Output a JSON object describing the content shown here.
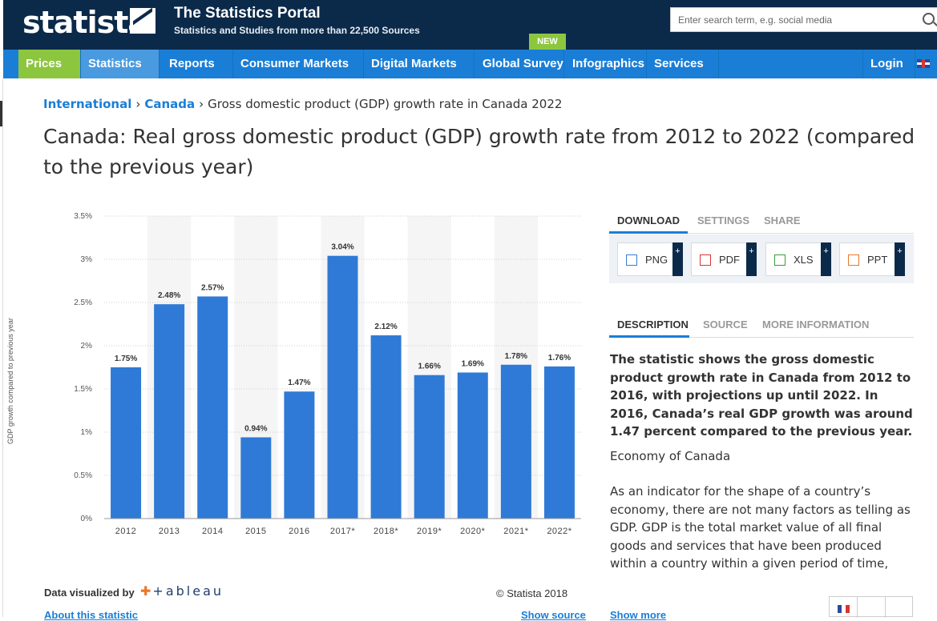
{
  "header": {
    "logo": "statista",
    "title": "The Statistics Portal",
    "subtitle": "Statistics and Studies from more than 22,500 Sources",
    "new_badge": "NEW",
    "search_placeholder": "Enter search term, e.g. social media"
  },
  "nav": {
    "items": [
      "Prices",
      "Statistics",
      "Reports",
      "Consumer Markets",
      "Digital Markets",
      "Global Survey",
      "Infographics",
      "Services"
    ],
    "login": "Login"
  },
  "breadcrumb": {
    "items": [
      "International",
      "Canada"
    ],
    "current": "Gross domestic product (GDP) growth rate in Canada 2022"
  },
  "page_title": "Canada: Real gross domestic product (GDP) growth rate from 2012 to 2022 (compared to the previous year)",
  "chart_data": {
    "type": "bar",
    "categories": [
      "2012",
      "2013",
      "2014",
      "2015",
      "2016",
      "2017*",
      "2018*",
      "2019*",
      "2020*",
      "2021*",
      "2022*"
    ],
    "values": [
      1.75,
      2.48,
      2.57,
      0.94,
      1.47,
      3.04,
      2.12,
      1.66,
      1.69,
      1.78,
      1.76
    ],
    "value_labels": [
      "1.75%",
      "2.48%",
      "2.57%",
      "0.94%",
      "1.47%",
      "3.04%",
      "2.12%",
      "1.66%",
      "1.69%",
      "1.78%",
      "1.76%"
    ],
    "yticks": [
      "0%",
      "0.5%",
      "1%",
      "1.5%",
      "2%",
      "2.5%",
      "3%",
      "3.5%"
    ],
    "ylim": [
      0,
      3.5
    ],
    "ylabel": "GDP growth compared to previous year",
    "xlabel": "",
    "title": "",
    "grid": true,
    "bar_color": "#2f7ad6"
  },
  "chart_footer": {
    "visualized_by": "Data visualized by",
    "tableau": "+ableau",
    "copyright": "© Statista 2018",
    "about": "About this statistic",
    "show_source": "Show source"
  },
  "side": {
    "tabs": [
      "DOWNLOAD",
      "SETTINGS",
      "SHARE"
    ],
    "downloads": [
      "PNG",
      "PDF",
      "XLS",
      "PPT"
    ],
    "info_tabs": [
      "DESCRIPTION",
      "SOURCE",
      "MORE INFORMATION"
    ],
    "description": "The statistic shows the gross domestic product growth rate in Canada from 2012 to 2016, with projections up until 2022. In 2016, Canada’s real GDP growth was around 1.47 percent compared to the previous year.",
    "subheading": "Economy of Canada",
    "paragraph": "As an indicator for the shape of a country’s economy, there are not many factors as telling as GDP. GDP is the total market value of all final goods and services that have been produced within a country within a given period of time, usually a year. Real GDP figures serve as an even more reliable tool",
    "show_more": "Show more"
  },
  "colors": {
    "header_bg": "#0b2a4a",
    "nav_bg": "#1a7ed6",
    "prices_bg": "#8cc63f",
    "link": "#1a7ed6"
  }
}
